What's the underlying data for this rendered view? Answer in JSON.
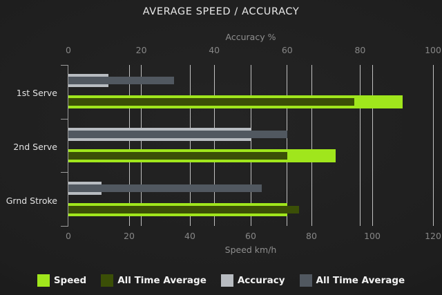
{
  "chart_data": {
    "type": "bar",
    "orientation": "horizontal",
    "title": "AVERAGE SPEED / ACCURACY",
    "categories": [
      "1st Serve",
      "2nd Serve",
      "Grnd Stroke"
    ],
    "axes": {
      "top": {
        "label": "Accuracy %",
        "min": 0,
        "max": 100,
        "ticks": [
          0,
          20,
          40,
          60,
          80,
          100
        ]
      },
      "bottom": {
        "label": "Speed km/h",
        "min": 0,
        "max": 120,
        "ticks": [
          0,
          20,
          40,
          60,
          80,
          100,
          120
        ]
      }
    },
    "series": [
      {
        "name": "Speed",
        "axis": "bottom",
        "color": "#a0e61c",
        "values": [
          110,
          88,
          72
        ]
      },
      {
        "name": "All Time Average",
        "axis": "bottom",
        "color": "#3b4f07",
        "values": [
          94,
          72,
          76
        ]
      },
      {
        "name": "Accuracy",
        "axis": "top",
        "color": "#b8bcc1",
        "values": [
          11,
          50,
          9
        ]
      },
      {
        "name": "All Time Average",
        "axis": "top",
        "color": "#515860",
        "values": [
          29,
          60,
          53
        ]
      }
    ],
    "legend": [
      {
        "label": "Speed",
        "color": "#a0e61c"
      },
      {
        "label": "All Time Average",
        "color": "#3b4f07"
      },
      {
        "label": "Accuracy",
        "color": "#b8bcc1"
      },
      {
        "label": "All Time Average",
        "color": "#515860"
      }
    ],
    "legend_position": "bottom",
    "grid": true
  },
  "colors": {
    "speed": "#a0e61c",
    "speed_all_time_average": "#3b4f07",
    "accuracy": "#b8bcc1",
    "accuracy_all_time_average": "#515860"
  }
}
